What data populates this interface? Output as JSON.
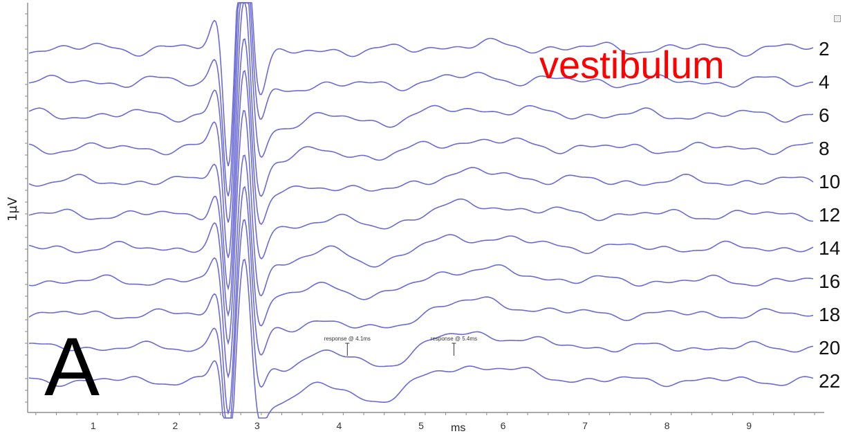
{
  "panel": {
    "letter": "A",
    "title": "vestibulum",
    "ylabel": "1µV",
    "x_unit": "ms"
  },
  "chart_data": {
    "type": "line",
    "xlabel": "ms",
    "ylabel": "1µV",
    "xlim": [
      0.2,
      9.8
    ],
    "x_ticks": [
      1,
      2,
      3,
      4,
      5,
      6,
      7,
      8,
      9
    ],
    "trace_labels": [
      "2",
      "4",
      "6",
      "8",
      "10",
      "12",
      "14",
      "16",
      "18",
      "20",
      "22"
    ],
    "annotations": [
      {
        "text": "response @ 4.1ms",
        "x": 4.1,
        "trace": "20"
      },
      {
        "text": "response @ 5.4ms",
        "x": 5.4,
        "trace": "20"
      }
    ],
    "colors": {
      "trace": "#6a6ad6",
      "title": "#ff0000"
    }
  }
}
